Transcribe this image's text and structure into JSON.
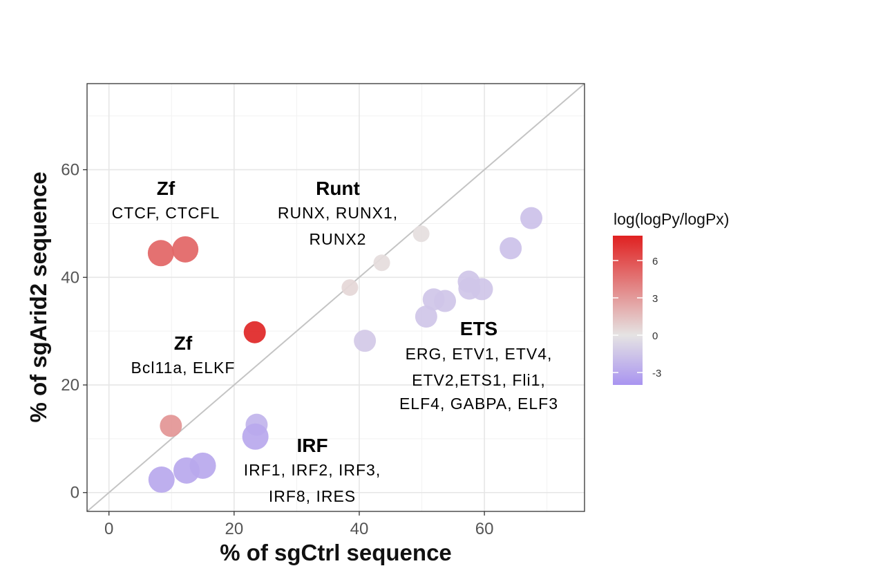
{
  "chart_data": {
    "type": "scatter",
    "xlabel": "% of sgCtrl sequence",
    "ylabel": "% of sgArid2 sequence",
    "xlim": [
      -3.5,
      76
    ],
    "ylim": [
      -3.5,
      76
    ],
    "x_ticks": [
      0,
      20,
      40,
      60
    ],
    "y_ticks": [
      0,
      20,
      40,
      60
    ],
    "x_tick_labels": [
      "0",
      "20",
      "40",
      "60"
    ],
    "y_tick_labels": [
      "0",
      "20",
      "40",
      "60"
    ],
    "grid": true,
    "diagonal_reference_line": true,
    "legend": {
      "title": "log(logPy/logPx)",
      "placement": "right",
      "min": -4,
      "max": 8,
      "ticks": [
        6,
        3,
        0,
        -3
      ],
      "tick_labels": [
        "6",
        "3",
        "0",
        "-3"
      ],
      "colors": {
        "low": "#a994f0",
        "mid": "#e5e3e3",
        "high": "#e02121"
      }
    },
    "points": [
      {
        "x": 8.3,
        "y": 44.5,
        "color_value": 5.2,
        "size": 3
      },
      {
        "x": 12.2,
        "y": 45.2,
        "color_value": 5.2,
        "size": 3
      },
      {
        "x": 23.3,
        "y": 29.8,
        "color_value": 7.8,
        "size": 2
      },
      {
        "x": 9.9,
        "y": 12.4,
        "color_value": 3.2,
        "size": 2
      },
      {
        "x": 38.5,
        "y": 38.1,
        "color_value": 0.5,
        "size": 1
      },
      {
        "x": 43.6,
        "y": 42.7,
        "color_value": 0.3,
        "size": 1
      },
      {
        "x": 49.9,
        "y": 48.1,
        "color_value": 0.2,
        "size": 1
      },
      {
        "x": 40.9,
        "y": 28.2,
        "color_value": -1.3,
        "size": 2
      },
      {
        "x": 50.7,
        "y": 32.7,
        "color_value": -1.5,
        "size": 2
      },
      {
        "x": 51.9,
        "y": 35.9,
        "color_value": -1.5,
        "size": 2
      },
      {
        "x": 53.7,
        "y": 35.6,
        "color_value": -1.5,
        "size": 2
      },
      {
        "x": 57.5,
        "y": 39.2,
        "color_value": -1.5,
        "size": 2
      },
      {
        "x": 57.6,
        "y": 37.9,
        "color_value": -1.5,
        "size": 2
      },
      {
        "x": 59.6,
        "y": 37.8,
        "color_value": -1.5,
        "size": 2
      },
      {
        "x": 64.2,
        "y": 45.4,
        "color_value": -1.7,
        "size": 2
      },
      {
        "x": 67.5,
        "y": 51.0,
        "color_value": -1.7,
        "size": 2
      },
      {
        "x": 23.6,
        "y": 12.6,
        "color_value": -2.4,
        "size": 2
      },
      {
        "x": 23.4,
        "y": 10.4,
        "color_value": -3.0,
        "size": 3
      },
      {
        "x": 8.4,
        "y": 2.4,
        "color_value": -3.0,
        "size": 3
      },
      {
        "x": 12.4,
        "y": 4.1,
        "color_value": -3.0,
        "size": 3
      },
      {
        "x": 15.0,
        "y": 5.0,
        "color_value": -3.0,
        "size": 3
      }
    ],
    "annotations": [
      {
        "title": "Zf",
        "lines": [
          "CTCF, CTCFL"
        ]
      },
      {
        "title": "Runt",
        "lines": [
          "RUNX, RUNX1,",
          "RUNX2"
        ]
      },
      {
        "title": "Zf",
        "lines": [
          "Bcl11a, ELKF"
        ]
      },
      {
        "title": "ETS",
        "lines": [
          "ERG, ETV1, ETV4,",
          "ETV2,ETS1, Fli1,",
          "ELF4, GABPA, ELF3"
        ]
      },
      {
        "title": "IRF",
        "lines": [
          "IRF1, IRF2, IRF3,",
          "IRF8, IRES"
        ]
      }
    ]
  }
}
